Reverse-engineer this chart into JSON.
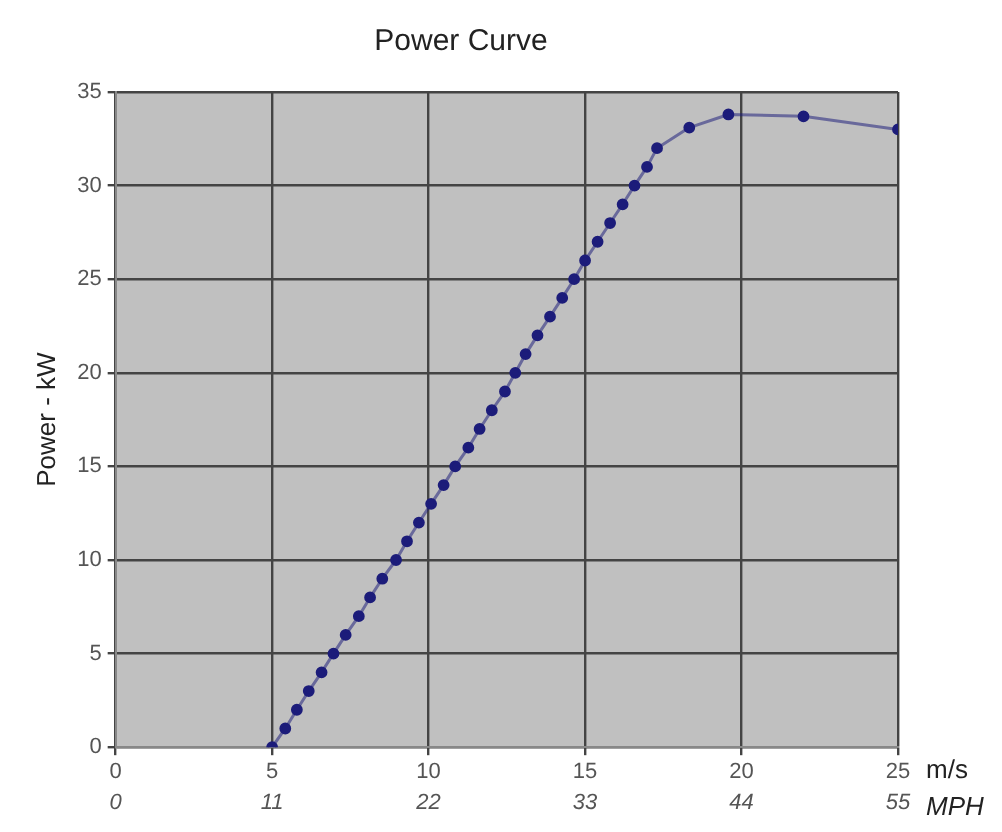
{
  "chart_data": {
    "type": "line",
    "title": "Power Curve",
    "xlabel": "m/s",
    "x2label": "MPH",
    "ylabel": "Power - kW",
    "xlim": [
      0,
      25
    ],
    "xticks": [
      0,
      5,
      10,
      15,
      20,
      25
    ],
    "x2lim": [
      0,
      55
    ],
    "x2ticks": [
      0,
      11,
      22,
      33,
      44,
      55
    ],
    "ylim": [
      0,
      35
    ],
    "yticks": [
      0,
      5,
      10,
      15,
      20,
      25,
      30,
      35
    ],
    "grid": true,
    "marker": "circle",
    "line_style": "solid",
    "legend": false,
    "series": [
      {
        "color": "#1c1c7a",
        "x": [
          5.0,
          5.42,
          5.79,
          6.17,
          6.58,
          6.96,
          7.35,
          7.77,
          8.13,
          8.52,
          8.96,
          9.31,
          9.69,
          10.08,
          10.48,
          10.85,
          11.27,
          11.63,
          12.02,
          12.44,
          12.77,
          13.1,
          13.48,
          13.88,
          14.27,
          14.65,
          15.0,
          15.4,
          15.8,
          16.2,
          16.58,
          16.98,
          17.3,
          18.33,
          19.58,
          21.98,
          25.0
        ],
        "values": [
          0,
          1,
          2,
          3,
          4,
          5,
          6,
          7,
          8,
          9,
          10,
          11,
          12,
          13,
          14,
          15,
          16,
          17,
          18,
          19,
          20,
          21,
          22,
          23,
          24,
          25,
          26,
          27,
          28,
          29,
          30,
          31,
          32,
          33.1,
          33.8,
          33.7,
          33.0
        ]
      }
    ]
  }
}
